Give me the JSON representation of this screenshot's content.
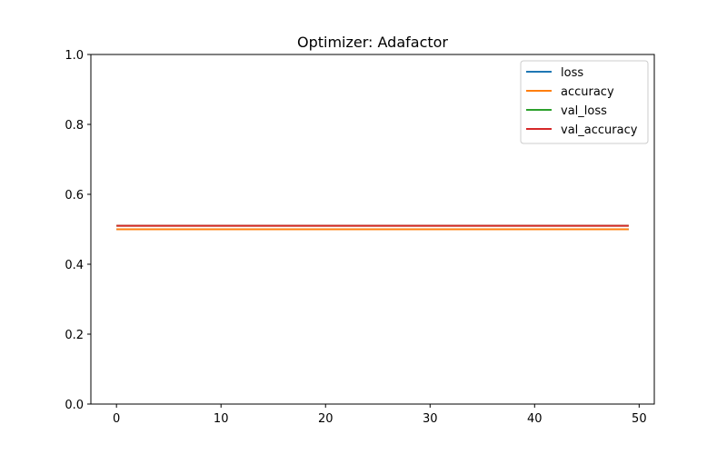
{
  "chart_data": {
    "type": "line",
    "title": "Optimizer: Adafactor",
    "xlabel": "",
    "ylabel": "",
    "xlim": [
      -2.45,
      51.45
    ],
    "ylim": [
      0.0,
      1.0
    ],
    "x_range": [
      0,
      49
    ],
    "xticks": [
      0,
      10,
      20,
      30,
      40,
      50
    ],
    "yticks": [
      0.0,
      0.2,
      0.4,
      0.6,
      0.8,
      1.0
    ],
    "grid": false,
    "legend_position": "top-right",
    "series": [
      {
        "name": "loss",
        "color": "#1f77b4",
        "value": 0.5
      },
      {
        "name": "accuracy",
        "color": "#ff7f0e",
        "value": 0.5
      },
      {
        "name": "val_loss",
        "color": "#2ca02c",
        "value": 0.51
      },
      {
        "name": "val_accuracy",
        "color": "#d62728",
        "value": 0.51
      }
    ]
  }
}
